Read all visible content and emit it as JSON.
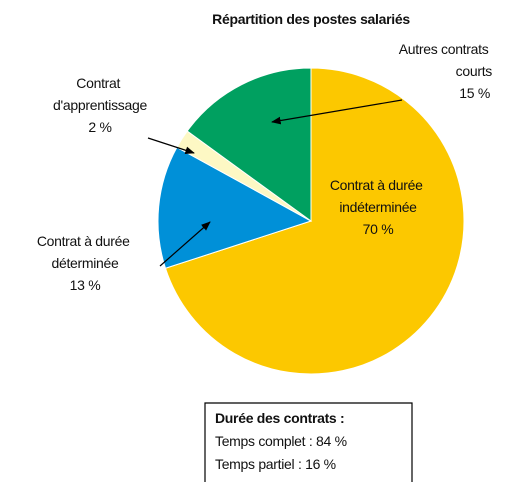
{
  "chart_data": {
    "type": "pie",
    "title": "Répartition des postes salariés",
    "categories": [
      "Contrat à durée\nindéterminée",
      "Contrat à durée\ndéterminée",
      "Contrat\nd'apprentissage",
      "Autres contrats\ncourts"
    ],
    "values": [
      70,
      13,
      2,
      15
    ],
    "value_labels": [
      "70 %",
      "13 %",
      "2 %",
      "15 %"
    ],
    "colors": [
      "#fcc800",
      "#0090d8",
      "#fdf8c4",
      "#00a060"
    ],
    "note": {
      "title": "Durée des contrats :",
      "items": [
        "Temps complet : 84 %",
        "Temps partiel : 16 %"
      ]
    }
  }
}
